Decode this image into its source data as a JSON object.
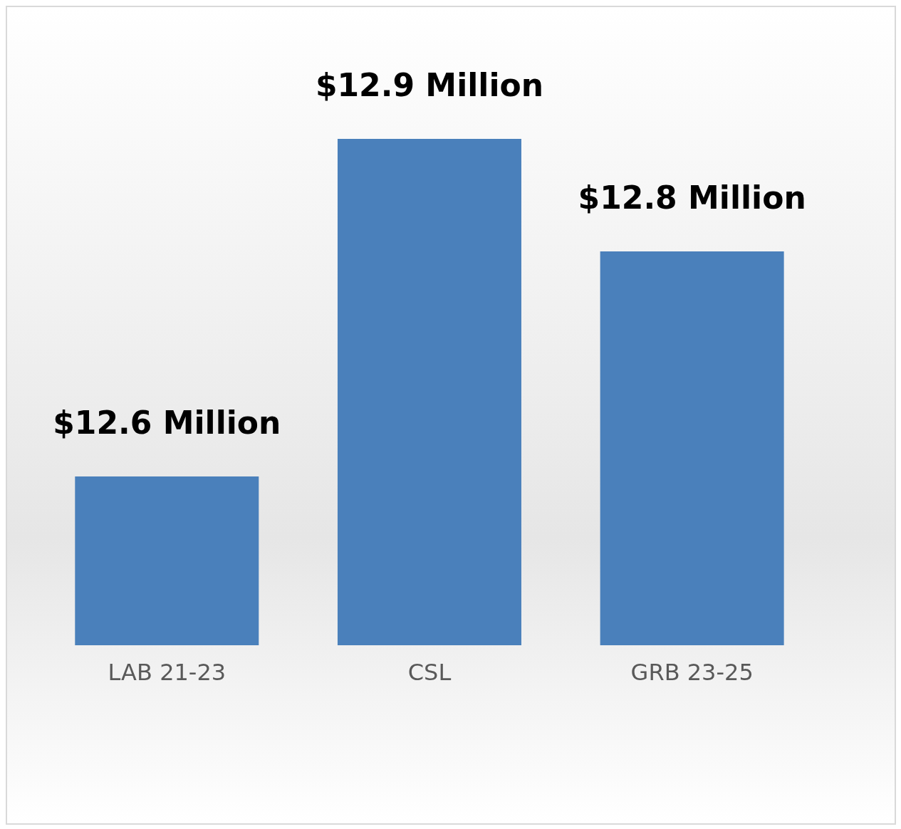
{
  "chart_data": {
    "type": "bar",
    "categories": [
      "LAB 21-23",
      "CSL",
      "GRB 23-25"
    ],
    "values": [
      12.6,
      12.9,
      12.8
    ],
    "value_labels": [
      "$12.6 Million",
      "$12.9 Million",
      "$12.8 Million"
    ],
    "color": "#4a80bb",
    "ylim": [
      12.45,
      12.9
    ],
    "tick_labels": "x"
  }
}
